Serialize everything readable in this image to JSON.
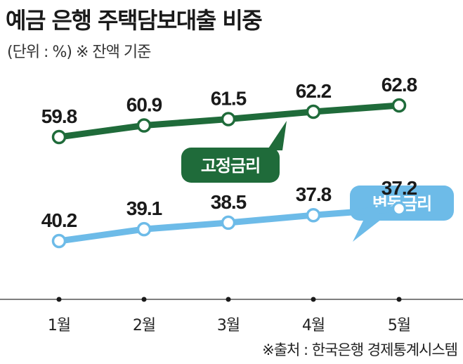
{
  "title": "예금 은행 주택담보대출 비중",
  "subtitle": "(단위 : %) ※ 잔액 기준",
  "source": "※출처 : 한국은행 경제통계시스템",
  "colors": {
    "fixed": "#1f6b3a",
    "variable": "#6dbbe8"
  },
  "chart_data": {
    "type": "line",
    "categories": [
      "1월",
      "2월",
      "3월",
      "4월",
      "5월"
    ],
    "series": [
      {
        "name": "고정금리",
        "values": [
          59.8,
          60.9,
          61.5,
          62.2,
          62.8
        ]
      },
      {
        "name": "변동금리",
        "values": [
          40.2,
          39.1,
          38.5,
          37.8,
          37.2
        ]
      }
    ],
    "title": "예금 은행 주택담보대출 비중",
    "ylabel": "",
    "grid": false,
    "y_axis_visible": false
  }
}
